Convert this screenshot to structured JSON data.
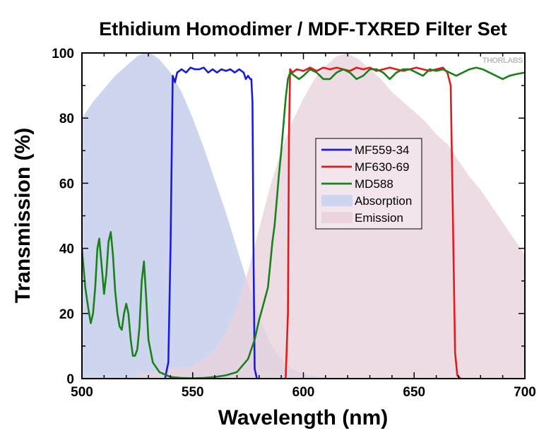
{
  "chart_data": {
    "type": "area",
    "title": "Ethidium Homodimer / MDF-TXRED Filter Set",
    "xlabel": "Wavelength (nm)",
    "ylabel": "Transmission (%)",
    "xlim": [
      500,
      700
    ],
    "ylim": [
      0,
      100
    ],
    "xticks": [
      500,
      550,
      600,
      650,
      700
    ],
    "yticks": [
      0,
      20,
      40,
      60,
      80,
      100
    ],
    "watermark": "THORLABS",
    "legend_position": "center-right",
    "series": [
      {
        "name": "Absorption",
        "kind": "area",
        "color": "#cdd6ee",
        "x": [
          500,
          505,
          510,
          515,
          520,
          525,
          528,
          531,
          535,
          540,
          545,
          550,
          555,
          560,
          565,
          570,
          575,
          580,
          585,
          590,
          595,
          600,
          605,
          610,
          615,
          620,
          625,
          630,
          640,
          650,
          660,
          670,
          680,
          690,
          700
        ],
        "y": [
          80,
          85,
          89,
          93,
          96,
          99,
          100,
          100,
          98,
          94,
          88,
          80,
          71,
          61,
          51,
          40,
          29,
          19,
          11,
          6,
          3,
          1.5,
          0.8,
          0.4,
          0.2,
          0.1,
          0,
          0,
          0,
          0,
          0,
          0,
          0,
          0,
          0
        ]
      },
      {
        "name": "Emission",
        "kind": "area",
        "color": "#ead3de",
        "x": [
          525,
          530,
          540,
          550,
          555,
          560,
          565,
          570,
          575,
          580,
          585,
          590,
          595,
          600,
          605,
          610,
          615,
          620,
          625,
          630,
          635,
          640,
          645,
          650,
          655,
          660,
          665,
          670,
          675,
          680,
          685,
          690,
          695,
          700
        ],
        "y": [
          2,
          2,
          3,
          4,
          6,
          9,
          14,
          22,
          33,
          46,
          59,
          70,
          79,
          86,
          92,
          96,
          99,
          100,
          98,
          95,
          92,
          88,
          85,
          82,
          79,
          75,
          72,
          67,
          62,
          58,
          53,
          48,
          43,
          38
        ]
      },
      {
        "name": "MF559-34",
        "kind": "line",
        "color": "#1a1ae6",
        "x": [
          537.5,
          539,
          540,
          541,
          542,
          543,
          545,
          547,
          549,
          551,
          553,
          555,
          557,
          559,
          561,
          563,
          565,
          567,
          569,
          571,
          573,
          574,
          575,
          576,
          576.5,
          577,
          577.5,
          578,
          579
        ],
        "y": [
          0,
          5,
          40,
          93,
          91,
          94,
          95,
          94,
          95.5,
          95,
          95,
          95.5,
          94,
          95,
          94,
          95,
          94.5,
          95,
          94,
          95,
          94,
          92,
          93,
          92,
          92,
          85,
          35,
          3,
          0
        ]
      },
      {
        "name": "MF630-69",
        "kind": "line",
        "color": "#e61a1a",
        "x": [
          592,
          593,
          593.5,
          594,
          595,
          597,
          600,
          603,
          606,
          609,
          612,
          615,
          618,
          621,
          624,
          627,
          630,
          633,
          636,
          639,
          642,
          645,
          648,
          651,
          654,
          657,
          660,
          663,
          665,
          666.5,
          667.5,
          668.5,
          669.5,
          671
        ],
        "y": [
          0,
          20,
          75,
          95,
          94,
          95,
          94.5,
          95.5,
          94.5,
          95.5,
          95,
          95.5,
          95,
          94.5,
          95.5,
          95,
          95.5,
          94.5,
          95,
          95.5,
          95,
          94.5,
          95,
          95.5,
          95,
          94.5,
          95,
          95.5,
          94,
          90,
          50,
          8,
          1,
          0
        ]
      },
      {
        "name": "MD588",
        "kind": "line",
        "color": "#1a801a",
        "x": [
          500,
          501.5,
          503,
          504,
          505,
          506,
          507,
          507.8,
          509,
          510,
          511,
          512,
          513,
          514,
          515,
          516,
          517,
          518,
          519,
          520,
          521,
          522,
          523,
          524,
          525,
          526,
          527,
          528,
          529,
          530,
          532,
          535,
          540,
          545,
          550,
          555,
          560,
          565,
          570,
          575,
          578,
          580,
          582,
          584,
          585,
          586,
          587,
          588,
          589,
          590,
          591,
          592,
          593,
          594,
          596,
          598,
          600,
          603,
          606,
          609,
          612,
          615,
          618,
          621,
          624,
          627,
          630,
          633,
          636,
          639,
          642,
          645,
          648,
          651,
          654,
          657,
          660,
          663,
          666,
          669,
          672,
          675,
          678,
          681,
          684,
          687,
          690,
          693,
          696,
          700
        ],
        "y": [
          40,
          28,
          21,
          17,
          20,
          28,
          40,
          43,
          34,
          26,
          32,
          42,
          45,
          38,
          27,
          20,
          16,
          15,
          20,
          23,
          20,
          12,
          7,
          7,
          9,
          16,
          30,
          36,
          25,
          12,
          5,
          2,
          0.5,
          0.2,
          0.1,
          0.2,
          0.5,
          1,
          2,
          6,
          12,
          18,
          23,
          28,
          35,
          42,
          47,
          55,
          63,
          70,
          78,
          86,
          92,
          94,
          93,
          92,
          93,
          95,
          94,
          92,
          92,
          94,
          95,
          94,
          92,
          93,
          95,
          95,
          94,
          92,
          94,
          95,
          95,
          94,
          93,
          95,
          94.5,
          95,
          94,
          93,
          94,
          95,
          95.5,
          95,
          94,
          93,
          92,
          93,
          93.5,
          94
        ]
      }
    ]
  }
}
